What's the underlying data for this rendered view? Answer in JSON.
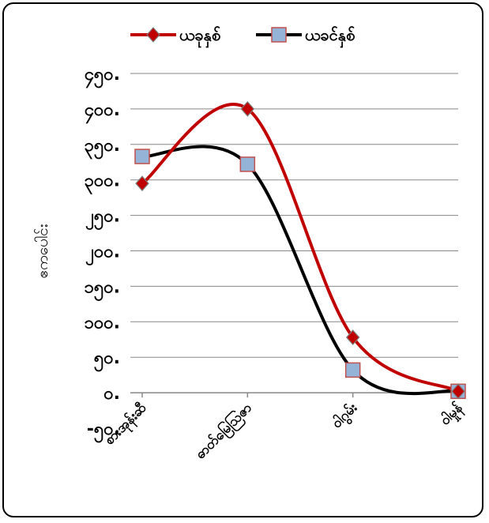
{
  "chart_data": {
    "type": "line",
    "smooth": true,
    "title": "",
    "xlabel": "",
    "ylabel": "ဧကပေါင်း",
    "categories": [
      "စားအုန်းဆီ",
      "ဓာတ်မြေဩဇာ",
      "ဝါဂွမ်း",
      "ဝါမှုန်"
    ],
    "series": [
      {
        "name": "ယခုနှစ်",
        "color": "#c00000",
        "marker": "diamond",
        "marker_fill": "#c00000",
        "values": [
          295,
          400,
          78,
          2
        ]
      },
      {
        "name": "ယခင်နှစ်",
        "color": "#000000",
        "marker": "square",
        "marker_fill": "#95b3d7",
        "values": [
          333,
          322,
          32,
          2
        ]
      }
    ],
    "ylim": [
      -50,
      450
    ],
    "yticks": [
      -50,
      0,
      50,
      100,
      150,
      200,
      250,
      300,
      350,
      400,
      450
    ],
    "ytick_labels": [
      "-၅၀.",
      "၀.",
      "၅၀.",
      "၁၀၀.",
      "၁၅၀.",
      "၂၀၀.",
      "၂၅၀.",
      "၃၀၀.",
      "၃၅၀.",
      "၄၀၀.",
      "၄၅၀."
    ],
    "grid": true,
    "legend_position": "top"
  }
}
